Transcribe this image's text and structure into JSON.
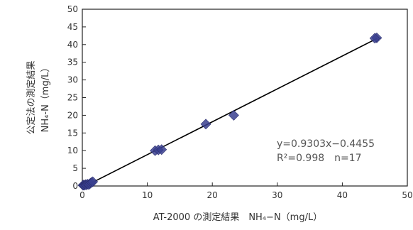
{
  "chart_data": {
    "type": "scatter",
    "xlabel": "AT-2000 の測定結果　NH₄−N（mg/L）",
    "ylabel_line1": "公定法の測定結果",
    "ylabel_line2": "NH₄-N（mg/L）",
    "xlim": [
      0,
      50
    ],
    "ylim": [
      0,
      50
    ],
    "xticks": [
      0,
      10,
      20,
      30,
      40,
      50
    ],
    "yticks": [
      0,
      5,
      10,
      15,
      20,
      25,
      30,
      35,
      40,
      45,
      50
    ],
    "grid": false,
    "marker_color": "#3a3f8f",
    "line_color": "#000000",
    "equation": "y=0.9303x−0.4455",
    "r2": "R²=0.998　n=17",
    "points": [
      {
        "x": 0.1,
        "y": 0.2
      },
      {
        "x": 0.2,
        "y": 0.3
      },
      {
        "x": 0.3,
        "y": 0.2
      },
      {
        "x": 0.5,
        "y": 0.4
      },
      {
        "x": 0.6,
        "y": 0.3
      },
      {
        "x": 0.8,
        "y": 0.5
      },
      {
        "x": 1.0,
        "y": 0.4
      },
      {
        "x": 1.2,
        "y": 0.7
      },
      {
        "x": 1.4,
        "y": 1.0
      },
      {
        "x": 1.6,
        "y": 1.2
      },
      {
        "x": 11.2,
        "y": 10.0
      },
      {
        "x": 11.7,
        "y": 10.2
      },
      {
        "x": 12.2,
        "y": 10.3
      },
      {
        "x": 19.0,
        "y": 17.5
      },
      {
        "x": 23.3,
        "y": 20.0
      },
      {
        "x": 45.3,
        "y": 41.9
      },
      {
        "x": 45.0,
        "y": 41.8
      }
    ],
    "fit": {
      "slope": 0.9303,
      "intercept": -0.4455,
      "x_range": [
        0.3,
        45.3
      ]
    }
  }
}
